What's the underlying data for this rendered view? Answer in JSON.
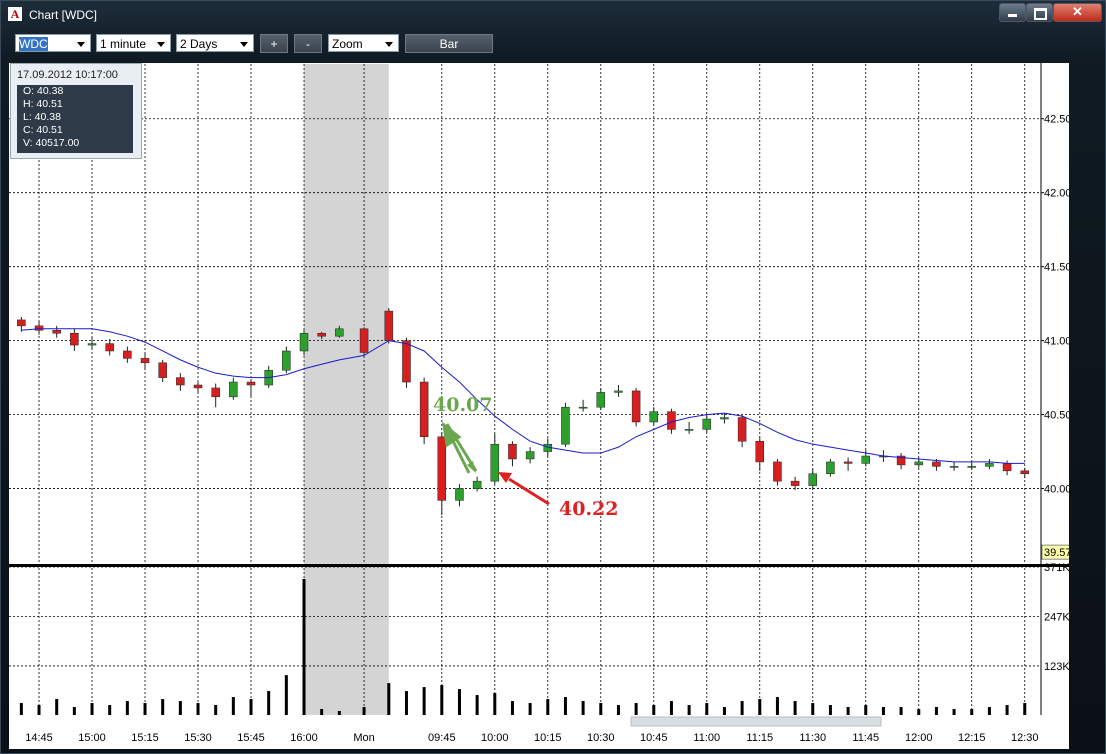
{
  "window": {
    "app_icon": "A",
    "title": "Chart [WDC]"
  },
  "toolbar": {
    "symbol": "WDC",
    "interval": "1 minute",
    "range": "2 Days",
    "zoom_in": "+",
    "zoom_out": "-",
    "zoom": "Zoom",
    "style": "Bar"
  },
  "info_box": {
    "date": "17.09.2012 10:17:00",
    "lines": [
      "O: 40.38",
      "H: 40.51",
      "L: 40.38",
      "C: 40.51",
      "V: 40517.00"
    ]
  },
  "chart_data": {
    "type": "candlestick",
    "x": [
      -5,
      0,
      5,
      10,
      15,
      20,
      25,
      30,
      35,
      40,
      45,
      50,
      55,
      60,
      65,
      70,
      75,
      80,
      85,
      92,
      99,
      104,
      109,
      114,
      119,
      124,
      129,
      134,
      139,
      144,
      149,
      154,
      159,
      164,
      169,
      174,
      179,
      184,
      189,
      194,
      199,
      204,
      209,
      214,
      219,
      224,
      229,
      234,
      239,
      244,
      249,
      254,
      259,
      264,
      269,
      274,
      279
    ],
    "open": [
      41.14,
      41.1,
      41.07,
      41.05,
      40.97,
      40.98,
      40.93,
      40.88,
      40.85,
      40.75,
      40.7,
      40.68,
      40.62,
      40.72,
      40.7,
      40.8,
      40.93,
      41.05,
      41.03,
      41.08,
      41.2,
      41.0,
      40.72,
      40.35,
      39.92,
      40.0,
      40.05,
      40.3,
      40.2,
      40.25,
      40.3,
      40.55,
      40.55,
      40.65,
      40.66,
      40.45,
      40.52,
      40.4,
      40.4,
      40.47,
      40.48,
      40.32,
      40.18,
      40.05,
      40.02,
      40.1,
      40.18,
      40.17,
      40.22,
      40.22,
      40.16,
      40.18,
      40.15,
      40.15,
      40.15,
      40.17,
      40.12
    ],
    "high": [
      41.16,
      41.13,
      41.1,
      41.08,
      41.02,
      41.01,
      40.96,
      40.92,
      40.87,
      40.78,
      40.72,
      40.71,
      40.75,
      40.74,
      40.83,
      40.96,
      41.07,
      41.06,
      41.1,
      41.09,
      41.22,
      41.02,
      40.75,
      40.38,
      40.03,
      40.08,
      40.37,
      40.32,
      40.28,
      40.34,
      40.58,
      40.6,
      40.68,
      40.7,
      40.68,
      40.55,
      40.54,
      40.45,
      40.5,
      40.51,
      40.5,
      40.35,
      40.2,
      40.08,
      40.13,
      40.2,
      40.21,
      40.26,
      40.26,
      40.24,
      40.21,
      40.2,
      40.18,
      40.18,
      40.2,
      40.19,
      40.14
    ],
    "low": [
      41.06,
      41.04,
      41.02,
      40.93,
      40.94,
      40.9,
      40.85,
      40.8,
      40.72,
      40.66,
      40.64,
      40.55,
      40.6,
      40.62,
      40.68,
      40.78,
      40.9,
      41.01,
      41.02,
      40.9,
      40.98,
      40.68,
      40.3,
      39.82,
      39.88,
      39.98,
      40.03,
      40.15,
      40.17,
      40.22,
      40.28,
      40.52,
      40.53,
      40.62,
      40.42,
      40.43,
      40.37,
      40.37,
      40.38,
      40.44,
      40.28,
      40.12,
      40.02,
      39.99,
      40.0,
      40.08,
      40.12,
      40.15,
      40.18,
      40.13,
      40.14,
      40.12,
      40.12,
      40.13,
      40.13,
      40.09,
      40.07
    ],
    "close": [
      41.1,
      41.07,
      41.05,
      40.97,
      40.98,
      40.93,
      40.88,
      40.85,
      40.75,
      40.7,
      40.68,
      40.62,
      40.72,
      40.7,
      40.8,
      40.93,
      41.05,
      41.03,
      41.08,
      40.92,
      41.0,
      40.72,
      40.35,
      39.92,
      40.0,
      40.05,
      40.3,
      40.2,
      40.25,
      40.3,
      40.55,
      40.55,
      40.65,
      40.66,
      40.45,
      40.52,
      40.4,
      40.4,
      40.47,
      40.48,
      40.32,
      40.18,
      40.05,
      40.02,
      40.1,
      40.18,
      40.17,
      40.22,
      40.22,
      40.16,
      40.18,
      40.15,
      40.15,
      40.15,
      40.17,
      40.12,
      40.1
    ],
    "moving_average": [
      41.07,
      41.08,
      41.08,
      41.08,
      41.08,
      41.06,
      41.03,
      40.99,
      40.93,
      40.87,
      40.82,
      40.78,
      40.76,
      40.75,
      40.75,
      40.77,
      40.81,
      40.84,
      40.87,
      40.9,
      41.0,
      40.98,
      40.93,
      40.82,
      40.72,
      40.6,
      40.49,
      40.4,
      40.32,
      40.28,
      40.26,
      40.24,
      40.24,
      40.28,
      40.35,
      40.4,
      40.45,
      40.48,
      40.5,
      40.51,
      40.49,
      40.44,
      40.38,
      40.33,
      40.3,
      40.28,
      40.26,
      40.24,
      40.22,
      40.21,
      40.2,
      40.19,
      40.18,
      40.18,
      40.18,
      40.17,
      40.17
    ],
    "volume": [
      30000,
      25000,
      40000,
      20000,
      30000,
      25000,
      35000,
      30000,
      40000,
      35000,
      30000,
      25000,
      45000,
      40000,
      60000,
      100000,
      341000,
      15000,
      10000,
      20000,
      80000,
      60000,
      70000,
      75000,
      65000,
      50000,
      55000,
      35000,
      30000,
      40000,
      45000,
      35000,
      30000,
      25000,
      30000,
      25000,
      35000,
      25000,
      30000,
      20000,
      35000,
      40000,
      45000,
      35000,
      30000,
      25000,
      20000,
      25000,
      20000,
      20000,
      15000,
      20000,
      15000,
      15000,
      20000,
      25000,
      30000
    ],
    "up_color": "#2ca02c",
    "down_color": "#d62020",
    "ma_color": "#1a1acc",
    "volume_color": "#000000",
    "xlim": [
      -8.5,
      283.6
    ],
    "xticks": [
      {
        "value": 0,
        "label": "14:45"
      },
      {
        "value": 15,
        "label": "15:00"
      },
      {
        "value": 30,
        "label": "15:15"
      },
      {
        "value": 45,
        "label": "15:30"
      },
      {
        "value": 60,
        "label": "15:45"
      },
      {
        "value": 75,
        "label": "16:00"
      },
      {
        "value": 92,
        "label": "Mon"
      },
      {
        "value": 114,
        "label": "09:45"
      },
      {
        "value": 129,
        "label": "10:00"
      },
      {
        "value": 144,
        "label": "10:15"
      },
      {
        "value": 159,
        "label": "10:30"
      },
      {
        "value": 174,
        "label": "10:45"
      },
      {
        "value": 189,
        "label": "11:00"
      },
      {
        "value": 204,
        "label": "11:15"
      },
      {
        "value": 219,
        "label": "11:30"
      },
      {
        "value": 234,
        "label": "11:45"
      },
      {
        "value": 249,
        "label": "12:00"
      },
      {
        "value": 264,
        "label": "12:15"
      },
      {
        "value": 279,
        "label": "12:30"
      }
    ],
    "closed_session": [
      75,
      99
    ],
    "ylim": [
      39.49,
      42.87
    ],
    "yticks": [
      {
        "value": 40,
        "label": "40.00"
      },
      {
        "value": 40.5,
        "label": "40.50"
      },
      {
        "value": 41,
        "label": "41.00"
      },
      {
        "value": 41.5,
        "label": "41.50"
      },
      {
        "value": 42,
        "label": "42.00"
      },
      {
        "value": 42.5,
        "label": "42.50"
      }
    ],
    "volume_ylim": [
      0,
      371000
    ],
    "volume_yticks": [
      {
        "value": 123000,
        "label": "123K"
      },
      {
        "value": 247000,
        "label": "247K"
      },
      {
        "value": 371000,
        "label": "371K"
      }
    ],
    "last_price": 39.57,
    "annotations": [
      {
        "text": "40.07",
        "color": "#6aa84f"
      },
      {
        "text": "40.22",
        "color": "#e02020"
      }
    ],
    "grid": true
  }
}
